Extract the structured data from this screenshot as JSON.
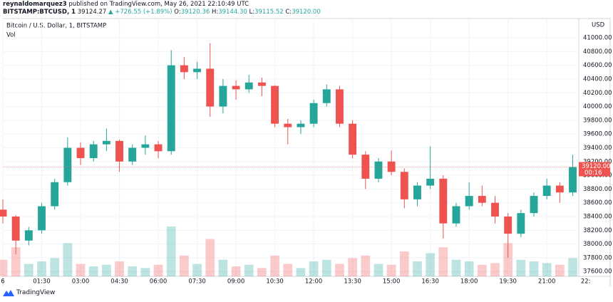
{
  "header": {
    "publisher": "reynaldomarquez3",
    "published": "published on TradingView.com, May 26, 2021 22:10:49 UTC",
    "symbol": "BITSTAMP:BTCUSD, 1",
    "last": "39124.27",
    "change": "▲ +726.55 (+1.89%)",
    "ohlc": [
      {
        "key": "O:",
        "value": "39120.36"
      },
      {
        "key": "H:",
        "value": "39144.30"
      },
      {
        "key": "L:",
        "value": "39115.52"
      },
      {
        "key": "C:",
        "value": "39120.00"
      }
    ]
  },
  "footer": {
    "brand": "TradingView"
  },
  "chart_data": {
    "type": "candlestick",
    "title": "Bitcoin / U.S. Dollar, 1, BITSTAMP",
    "subtitle": "Vol",
    "y_unit": "USD",
    "up_color": "#26a69a",
    "down_color": "#ef5350",
    "grid": true,
    "x": [
      0,
      30,
      60,
      90,
      120,
      150,
      180,
      210,
      240,
      270,
      300,
      330,
      360,
      390,
      420,
      450,
      480,
      510,
      540,
      570,
      600,
      630,
      660,
      690,
      720,
      750,
      780,
      810,
      840,
      870,
      900,
      930,
      960,
      990,
      1020,
      1050,
      1080,
      1110,
      1140,
      1170,
      1200,
      1230,
      1260,
      1290,
      1320
    ],
    "open": [
      38500,
      38400,
      38050,
      38200,
      38550,
      38900,
      39400,
      39250,
      39450,
      39500,
      39200,
      39400,
      39450,
      39350,
      40600,
      40500,
      40550,
      40000,
      40300,
      40250,
      40350,
      40300,
      39750,
      39700,
      39750,
      40050,
      40250,
      39750,
      39300,
      38950,
      39200,
      39050,
      38650,
      38850,
      38950,
      38300,
      38550,
      38700,
      38600,
      38400,
      38150,
      38450,
      38700,
      38850,
      38750
    ],
    "high": [
      38650,
      38420,
      38250,
      38600,
      38950,
      39550,
      39480,
      39500,
      39680,
      39520,
      39450,
      39580,
      39500,
      40820,
      40720,
      40650,
      40920,
      40400,
      40380,
      40460,
      40420,
      40310,
      39820,
      39800,
      40100,
      40320,
      40300,
      39800,
      39350,
      39250,
      39360,
      39100,
      38900,
      39420,
      39000,
      38600,
      38900,
      38850,
      38700,
      38450,
      38500,
      38750,
      38950,
      38900,
      39300
    ],
    "low": [
      38300,
      37850,
      37980,
      38150,
      38500,
      38850,
      39150,
      39200,
      39350,
      39050,
      39150,
      39300,
      39250,
      39300,
      40400,
      40400,
      39850,
      39900,
      40100,
      40200,
      40150,
      39700,
      39450,
      39600,
      39700,
      40000,
      39700,
      39250,
      38800,
      38900,
      39000,
      38520,
      38550,
      38800,
      38080,
      38250,
      38500,
      38550,
      38300,
      37800,
      38100,
      38400,
      38650,
      38600,
      38700
    ],
    "close": [
      38400,
      38050,
      38200,
      38550,
      38900,
      39400,
      39250,
      39450,
      39500,
      39200,
      39400,
      39450,
      39350,
      40600,
      40500,
      40550,
      40000,
      40300,
      40250,
      40350,
      40300,
      39750,
      39700,
      39750,
      40050,
      40250,
      39750,
      39300,
      38950,
      39200,
      39050,
      38650,
      38850,
      38950,
      38300,
      38550,
      38700,
      38600,
      38400,
      38150,
      38450,
      38700,
      38850,
      38750,
      39120
    ],
    "volume": [
      20,
      35,
      15,
      18,
      22,
      40,
      15,
      12,
      14,
      18,
      12,
      10,
      14,
      60,
      25,
      15,
      45,
      20,
      12,
      14,
      10,
      25,
      15,
      10,
      18,
      20,
      15,
      22,
      25,
      15,
      14,
      30,
      18,
      28,
      35,
      20,
      18,
      14,
      16,
      40,
      20,
      18,
      16,
      14,
      22
    ],
    "xlim": [
      0,
      1334
    ],
    "ylim": [
      37530,
      41280
    ],
    "xticks": [
      {
        "value": 0,
        "label": "6"
      },
      {
        "value": 90,
        "label": "01:30"
      },
      {
        "value": 180,
        "label": "03:00"
      },
      {
        "value": 270,
        "label": "04:30"
      },
      {
        "value": 360,
        "label": "06:00"
      },
      {
        "value": 450,
        "label": "07:30"
      },
      {
        "value": 540,
        "label": "09:00"
      },
      {
        "value": 630,
        "label": "10:30"
      },
      {
        "value": 720,
        "label": "12:00"
      },
      {
        "value": 810,
        "label": "13:30"
      },
      {
        "value": 900,
        "label": "15:00"
      },
      {
        "value": 990,
        "label": "16:30"
      },
      {
        "value": 1080,
        "label": "18:00"
      },
      {
        "value": 1170,
        "label": "19:30"
      },
      {
        "value": 1260,
        "label": "21:00"
      },
      {
        "value": 1350,
        "label": "22:"
      }
    ],
    "yticks": [
      {
        "value": 37600,
        "label": "37600.00"
      },
      {
        "value": 37800,
        "label": "37800.00"
      },
      {
        "value": 38000,
        "label": "38000.00"
      },
      {
        "value": 38200,
        "label": "38200.00"
      },
      {
        "value": 38400,
        "label": "38400.00"
      },
      {
        "value": 38600,
        "label": "38600.00"
      },
      {
        "value": 38800,
        "label": "38800.00"
      },
      {
        "value": 39000,
        "label": "39000.00"
      },
      {
        "value": 39200,
        "label": "39200.00"
      },
      {
        "value": 39400,
        "label": "39400.00"
      },
      {
        "value": 39600,
        "label": "39600.00"
      },
      {
        "value": 39800,
        "label": "39800.00"
      },
      {
        "value": 40000,
        "label": "40000.00"
      },
      {
        "value": 40200,
        "label": "40200.00"
      },
      {
        "value": 40400,
        "label": "40400.00"
      },
      {
        "value": 40600,
        "label": "40600.00"
      },
      {
        "value": 40800,
        "label": "40800.00"
      },
      {
        "value": 41000,
        "label": "41000.00"
      }
    ],
    "last_price": {
      "value": 39120,
      "label": "39120.00"
    },
    "countdown": "00:16"
  }
}
